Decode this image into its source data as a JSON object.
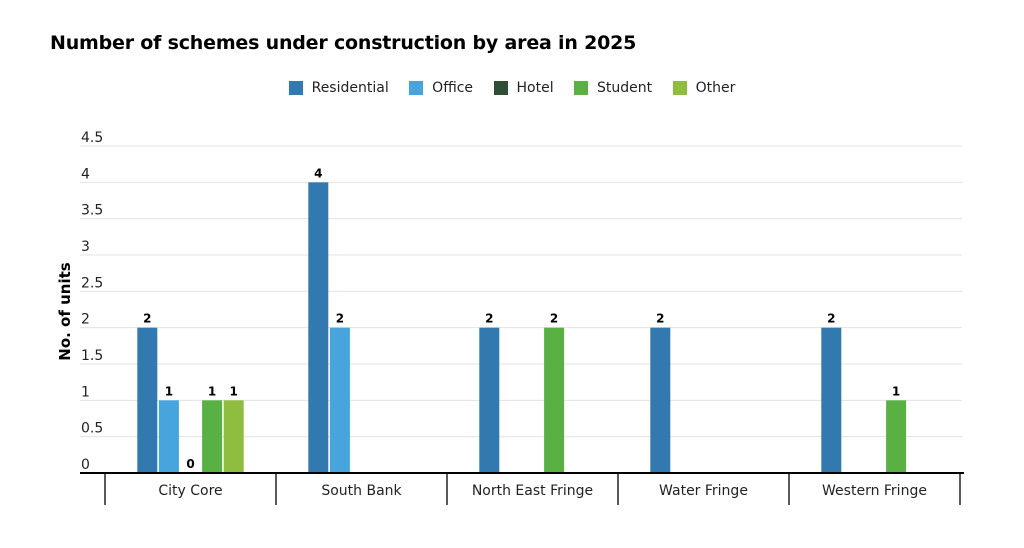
{
  "chart_data": {
    "type": "bar",
    "title": "Number of schemes under construction by area in 2025",
    "ylabel": "No. of units",
    "xlabel": "",
    "ylim": [
      0,
      4.5
    ],
    "yticks": [
      0,
      0.5,
      1,
      1.5,
      2,
      2.5,
      3,
      3.5,
      4,
      4.5
    ],
    "ytick_labels": [
      "0",
      "0.5",
      "1",
      "1.5",
      "2",
      "2.5",
      "3",
      "3.5",
      "4",
      "4.5"
    ],
    "categories": [
      "City Core",
      "South Bank",
      "North East Fringe",
      "Water Fringe",
      "Western Fringe"
    ],
    "legend_position": "top-center",
    "grid": true,
    "series": [
      {
        "name": "Residential",
        "color": "#3279b0",
        "values": [
          2,
          4,
          2,
          2,
          2
        ],
        "labels": [
          "2",
          "4",
          "2",
          "2",
          "2"
        ]
      },
      {
        "name": "Office",
        "color": "#47a4dd",
        "values": [
          1,
          2,
          null,
          null,
          null
        ],
        "labels": [
          "1",
          "2",
          "",
          "",
          ""
        ]
      },
      {
        "name": "Hotel",
        "color": "#2f4e35",
        "values": [
          0,
          null,
          null,
          null,
          null
        ],
        "labels": [
          "0",
          "",
          "",
          "",
          ""
        ]
      },
      {
        "name": "Student",
        "color": "#5ab143",
        "values": [
          1,
          null,
          2,
          null,
          1
        ],
        "labels": [
          "1",
          "",
          "2",
          "",
          "1"
        ]
      },
      {
        "name": "Other",
        "color": "#8fbd3f",
        "values": [
          1,
          null,
          null,
          null,
          null
        ],
        "labels": [
          "1",
          "",
          "",
          "",
          ""
        ]
      }
    ]
  }
}
